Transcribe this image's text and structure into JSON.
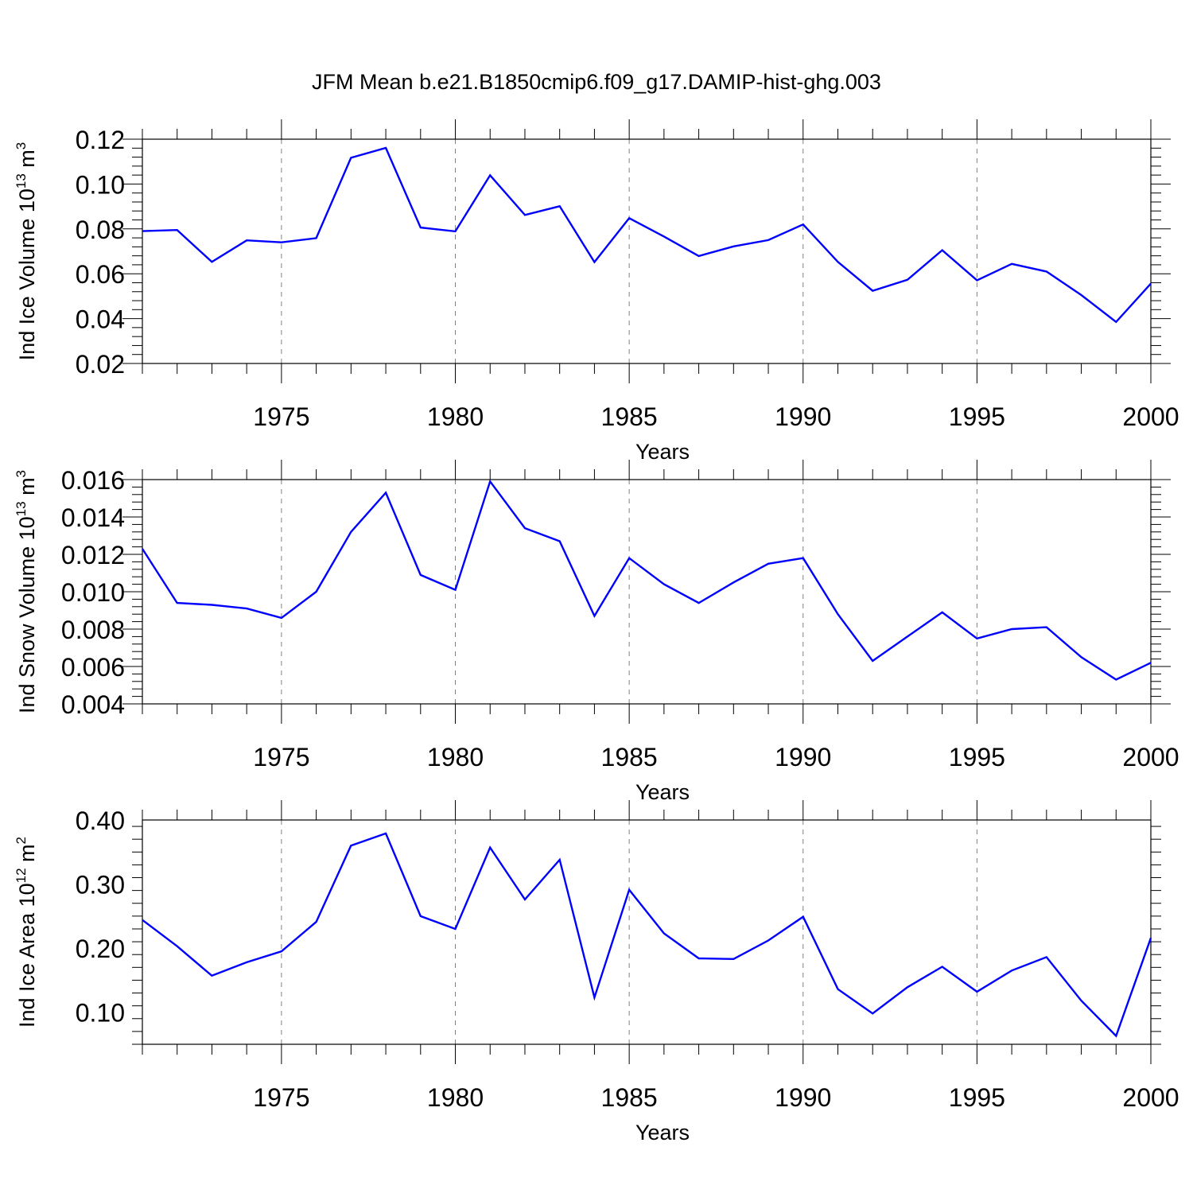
{
  "figure_title": "JFM Mean b.e21.B1850cmip6.f09_g17.DAMIP-hist-ghg.003",
  "colors": {
    "series": "#0000ff",
    "axis": "#000000",
    "grid": "#7f7f7f"
  },
  "chart_data": [
    {
      "type": "line",
      "title": "",
      "ylabel": "Ind Ice Volume 10^13 m^3",
      "ylabel_parts": {
        "base": "Ind Ice Volume 10",
        "exp1": "13",
        "mid": " m",
        "exp2": "3"
      },
      "xlabel": "Years",
      "xlim": [
        1971,
        2000
      ],
      "ylim": [
        0.02,
        0.12
      ],
      "xticks": [
        1975,
        1980,
        1985,
        1990,
        1995,
        2000
      ],
      "xtick_labels": [
        "1975",
        "1980",
        "1985",
        "1990",
        "1995",
        "2000"
      ],
      "yticks": [
        0.02,
        0.04,
        0.06,
        0.08,
        0.1,
        0.12
      ],
      "ytick_labels": [
        "0.02",
        "0.04",
        "0.06",
        "0.08",
        "0.10",
        "0.12"
      ],
      "grid": "vertical dashed at major x ticks",
      "x": [
        1971,
        1972,
        1973,
        1974,
        1975,
        1976,
        1977,
        1978,
        1979,
        1980,
        1981,
        1982,
        1983,
        1984,
        1985,
        1986,
        1987,
        1988,
        1989,
        1990,
        1991,
        1992,
        1993,
        1994,
        1995,
        1996,
        1997,
        1998,
        1999,
        2000
      ],
      "values": [
        0.079,
        0.0795,
        0.0653,
        0.0749,
        0.074,
        0.0759,
        0.1117,
        0.1161,
        0.0806,
        0.0789,
        0.1039,
        0.0862,
        0.0901,
        0.0652,
        0.0848,
        0.0766,
        0.0679,
        0.0722,
        0.075,
        0.082,
        0.0653,
        0.0524,
        0.0573,
        0.0705,
        0.0571,
        0.0644,
        0.061,
        0.0505,
        0.0385,
        0.0556
      ]
    },
    {
      "type": "line",
      "title": "",
      "ylabel": "Ind Snow Volume 10^13 m^3",
      "ylabel_parts": {
        "base": "Ind Snow Volume 10",
        "exp1": "13",
        "mid": " m",
        "exp2": "3"
      },
      "xlabel": "Years",
      "xlim": [
        1971,
        2000
      ],
      "ylim": [
        0.004,
        0.016
      ],
      "xticks": [
        1975,
        1980,
        1985,
        1990,
        1995,
        2000
      ],
      "xtick_labels": [
        "1975",
        "1980",
        "1985",
        "1990",
        "1995",
        "2000"
      ],
      "yticks": [
        0.004,
        0.006,
        0.008,
        0.01,
        0.012,
        0.014,
        0.016
      ],
      "ytick_labels": [
        "0.004",
        "0.006",
        "0.008",
        "0.010",
        "0.012",
        "0.014",
        "0.016"
      ],
      "grid": "vertical dashed at major x ticks",
      "x": [
        1971,
        1972,
        1973,
        1974,
        1975,
        1976,
        1977,
        1978,
        1979,
        1980,
        1981,
        1982,
        1983,
        1984,
        1985,
        1986,
        1987,
        1988,
        1989,
        1990,
        1991,
        1992,
        1993,
        1994,
        1995,
        1996,
        1997,
        1998,
        1999,
        2000
      ],
      "values": [
        0.0123,
        0.0094,
        0.0093,
        0.0091,
        0.0086,
        0.01,
        0.0132,
        0.0153,
        0.0109,
        0.0101,
        0.0159,
        0.0134,
        0.0127,
        0.0087,
        0.0118,
        0.0104,
        0.0094,
        0.0105,
        0.0115,
        0.0118,
        0.0088,
        0.0063,
        0.0076,
        0.0089,
        0.0075,
        0.008,
        0.0081,
        0.0065,
        0.0053,
        0.0062
      ]
    },
    {
      "type": "line",
      "title": "",
      "ylabel": "Ind Ice Area 10^12 m^2",
      "ylabel_parts": {
        "base": "Ind Ice Area 10",
        "exp1": "12",
        "mid": " m",
        "exp2": "2"
      },
      "xlabel": "Years",
      "xlim": [
        1971,
        2000
      ],
      "ylim": [
        0.05,
        0.4
      ],
      "xticks": [
        1975,
        1980,
        1985,
        1990,
        1995,
        2000
      ],
      "xtick_labels": [
        "1975",
        "1980",
        "1985",
        "1990",
        "1995",
        "2000"
      ],
      "yticks": [
        0.1,
        0.2,
        0.3,
        0.4
      ],
      "ytick_labels": [
        "0.10",
        "0.20",
        "0.30",
        "0.40"
      ],
      "grid": "vertical dashed at major x ticks",
      "x": [
        1971,
        1972,
        1973,
        1974,
        1975,
        1976,
        1977,
        1978,
        1979,
        1980,
        1981,
        1982,
        1983,
        1984,
        1985,
        1986,
        1987,
        1988,
        1989,
        1990,
        1991,
        1992,
        1993,
        1994,
        1995,
        1996,
        1997,
        1998,
        1999,
        2000
      ],
      "values": [
        0.244,
        0.203,
        0.157,
        0.178,
        0.195,
        0.241,
        0.36,
        0.379,
        0.25,
        0.23,
        0.357,
        0.276,
        0.338,
        0.123,
        0.291,
        0.223,
        0.184,
        0.183,
        0.212,
        0.249,
        0.136,
        0.098,
        0.139,
        0.171,
        0.132,
        0.165,
        0.186,
        0.118,
        0.063,
        0.216
      ]
    }
  ]
}
